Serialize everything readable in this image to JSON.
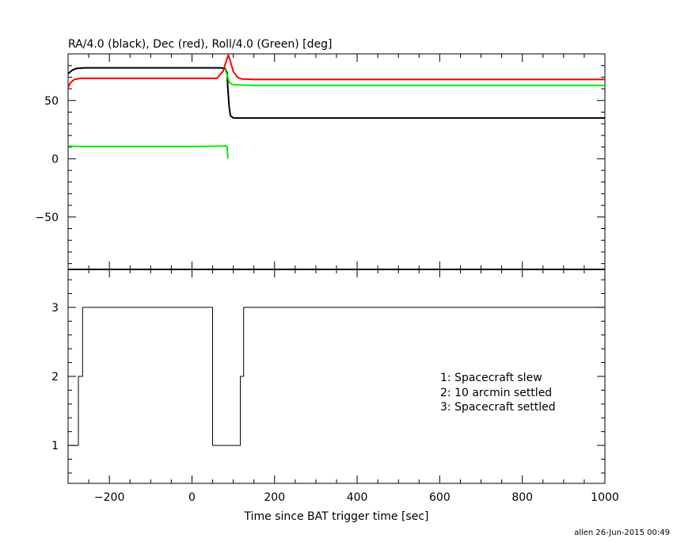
{
  "chart_data": [
    {
      "type": "line",
      "title": "RA/4.0 (black), Dec (red), Roll/4.0 (Green) [deg]",
      "xlim": [
        -300,
        1000
      ],
      "ylim": [
        -95,
        90
      ],
      "y_ticks": [
        -50,
        0,
        50
      ],
      "series": [
        {
          "color": "#000000",
          "points": [
            [
              -300,
              73
            ],
            [
              -290,
              76
            ],
            [
              -280,
              77.5
            ],
            [
              -260,
              78
            ],
            [
              0,
              78
            ],
            [
              70,
              78
            ],
            [
              80,
              77.5
            ],
            [
              85,
              74
            ],
            [
              87,
              60
            ],
            [
              90,
              45
            ],
            [
              93,
              37
            ],
            [
              100,
              35
            ],
            [
              150,
              35
            ],
            [
              350,
              35
            ],
            [
              1000,
              35
            ]
          ]
        },
        {
          "color": "#ff0000",
          "points": [
            [
              -300,
              61
            ],
            [
              -295,
              65
            ],
            [
              -285,
              68
            ],
            [
              -270,
              69
            ],
            [
              0,
              69
            ],
            [
              60,
              69
            ],
            [
              75,
              75
            ],
            [
              85,
              86
            ],
            [
              88,
              89
            ],
            [
              92,
              85
            ],
            [
              100,
              75
            ],
            [
              110,
              70
            ],
            [
              120,
              68.5
            ],
            [
              150,
              68
            ],
            [
              350,
              68
            ],
            [
              1000,
              68
            ]
          ]
        },
        {
          "color": "#00ee00",
          "points": [
            [
              -300,
              11
            ],
            [
              -280,
              10.5
            ],
            [
              0,
              10.5
            ],
            [
              75,
              10.8
            ],
            [
              82,
              11.2
            ],
            [
              85,
              10
            ],
            [
              87,
              0
            ]
          ]
        },
        {
          "color": "#00ee00",
          "points": [
            [
              80,
              77
            ],
            [
              85,
              72
            ],
            [
              88,
              68
            ],
            [
              92,
              65
            ],
            [
              100,
              63.5
            ],
            [
              150,
              63
            ],
            [
              350,
              63
            ],
            [
              1000,
              63
            ]
          ]
        }
      ]
    },
    {
      "type": "line",
      "xlabel": "Time since BAT trigger time [sec]",
      "xlim": [
        -300,
        1000
      ],
      "ylim": [
        0.45,
        3.55
      ],
      "x_ticks": [
        -200,
        0,
        200,
        400,
        600,
        800,
        1000
      ],
      "y_ticks": [
        1,
        2,
        3
      ],
      "series": [
        {
          "color": "#000000",
          "points": [
            [
              -300,
              1
            ],
            [
              -275,
              1
            ],
            [
              -275,
              2
            ],
            [
              -265,
              2
            ],
            [
              -265,
              3
            ],
            [
              50,
              3
            ],
            [
              50,
              1
            ],
            [
              117,
              1
            ],
            [
              117,
              2
            ],
            [
              125,
              2
            ],
            [
              125,
              3
            ],
            [
              1000,
              3
            ]
          ]
        }
      ],
      "legend_lines": [
        "1: Spacecraft slew",
        "2: 10 arcmin settled",
        "3: Spacecraft settled"
      ]
    }
  ],
  "footer": "allen 26-Jun-2015 00:49"
}
